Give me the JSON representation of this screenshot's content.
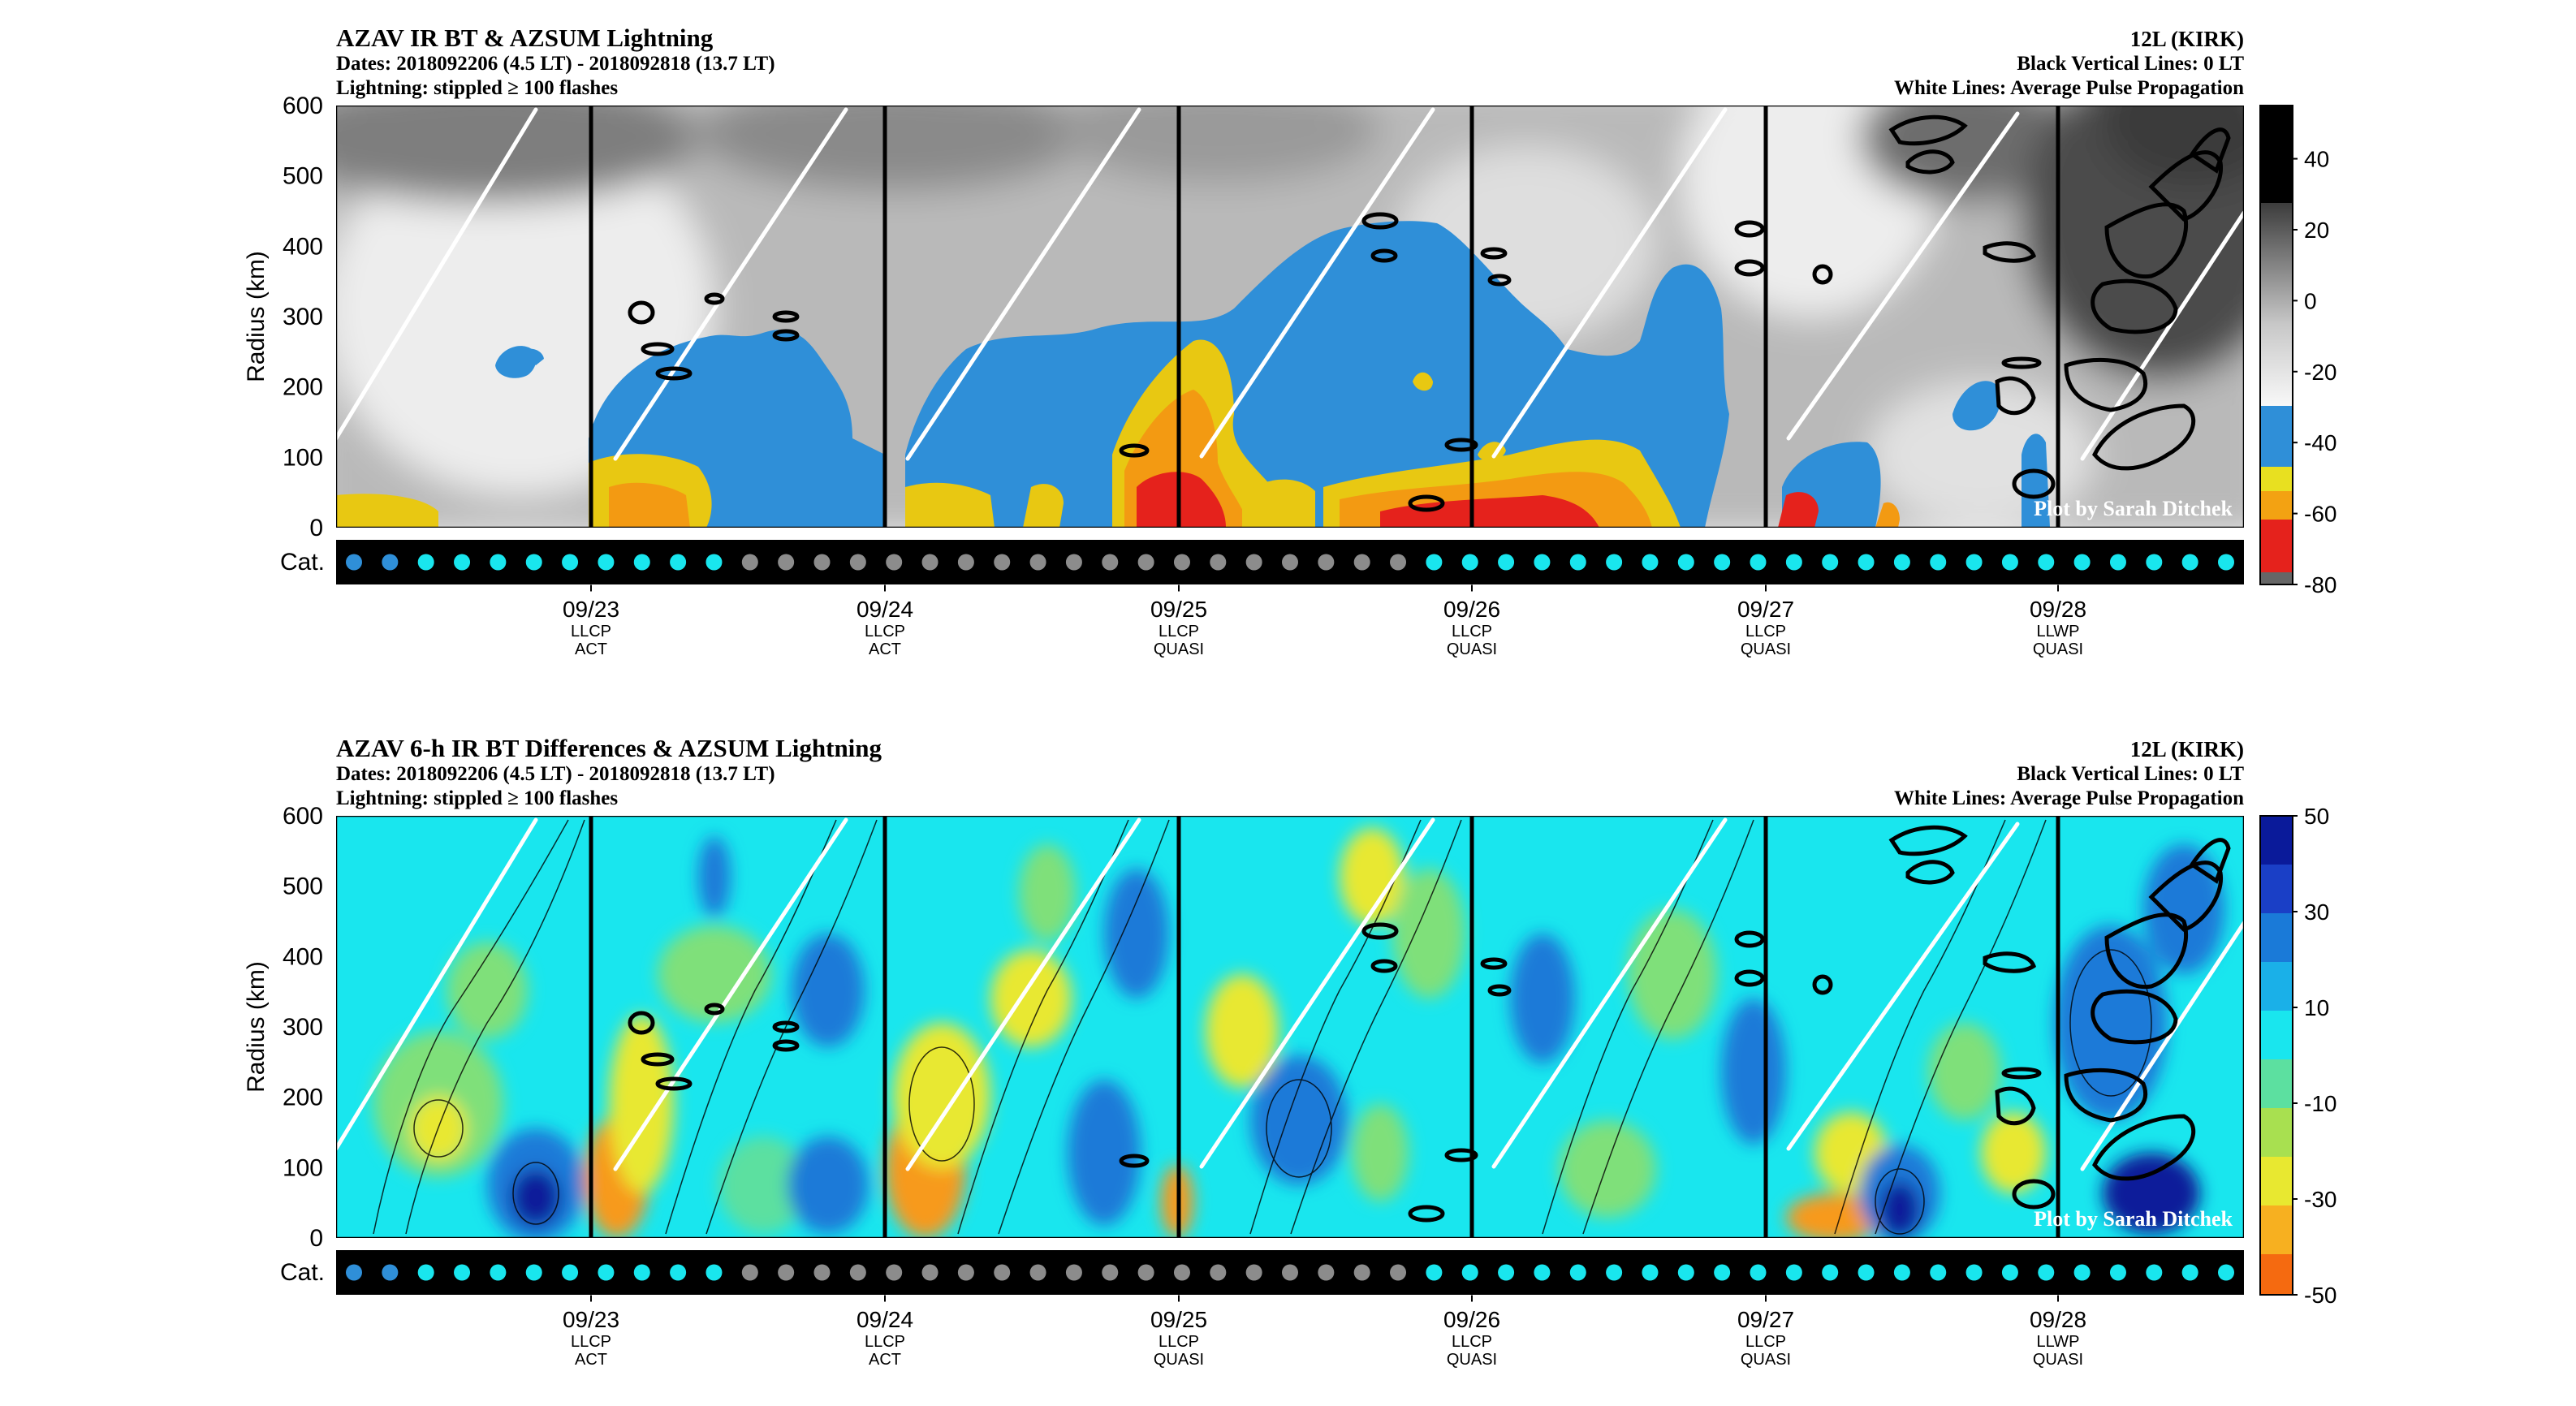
{
  "chart_data": [
    {
      "type": "heatmap",
      "title": "AZAV IR BT & AZSUM Lightning",
      "subtitle_dates": "Dates: 2018092206 (4.5 LT) - 2018092818 (13.7 LT)",
      "subtitle_lightning": "Lightning: stippled ≥ 100 flashes",
      "storm": "12L (KIRK)",
      "note_black_lines": "Black Vertical Lines: 0 LT",
      "note_white_lines": "White Lines: Average Pulse Propagation",
      "credit": "Plot by Sarah Ditchek",
      "ylabel": "Radius (km)",
      "ylim": [
        0,
        600
      ],
      "yticks": [
        "600",
        "500",
        "400",
        "300",
        "200",
        "100",
        "0"
      ],
      "category_label": "Cat.",
      "colorbar_ticks": [
        "40",
        "20",
        "0",
        "-20",
        "-40",
        "-60",
        "-80"
      ],
      "colorbar_range": [
        -80,
        55
      ],
      "colors": {
        "cold_blue": "#2f8fd8",
        "yellow": "#e9e21a",
        "orange": "#f39a12",
        "red": "#e5221c",
        "grey_light": "#e6e6e6",
        "grey_dark": "#4b4b4b"
      },
      "days": [
        {
          "date": "09/23",
          "phase": "LLCP",
          "state": "ACT"
        },
        {
          "date": "09/24",
          "phase": "LLCP",
          "state": "ACT"
        },
        {
          "date": "09/25",
          "phase": "LLCP",
          "state": "QUASI"
        },
        {
          "date": "09/26",
          "phase": "LLCP",
          "state": "QUASI"
        },
        {
          "date": "09/27",
          "phase": "LLCP",
          "state": "QUASI"
        },
        {
          "date": "09/28",
          "phase": "LLWP",
          "state": "QUASI"
        }
      ],
      "categories": [
        "blue",
        "blue",
        "cyan",
        "cyan",
        "cyan",
        "cyan",
        "cyan",
        "cyan",
        "cyan",
        "cyan",
        "cyan",
        "grey",
        "grey",
        "grey",
        "grey",
        "grey",
        "grey",
        "grey",
        "grey",
        "grey",
        "grey",
        "grey",
        "grey",
        "grey",
        "grey",
        "grey",
        "grey",
        "grey",
        "grey",
        "grey",
        "cyan",
        "cyan",
        "cyan",
        "cyan",
        "cyan",
        "cyan",
        "cyan",
        "cyan",
        "cyan",
        "cyan",
        "cyan",
        "cyan",
        "cyan",
        "cyan",
        "cyan",
        "cyan",
        "cyan",
        "cyan",
        "cyan",
        "cyan",
        "cyan",
        "cyan",
        "cyan"
      ]
    },
    {
      "type": "heatmap",
      "title": "AZAV 6-h IR BT Differences & AZSUM Lightning",
      "subtitle_dates": "Dates: 2018092206 (4.5 LT) - 2018092818 (13.7 LT)",
      "subtitle_lightning": "Lightning: stippled ≥ 100 flashes",
      "storm": "12L (KIRK)",
      "note_black_lines": "Black Vertical Lines: 0 LT",
      "note_white_lines": "White Lines: Average Pulse Propagation",
      "credit": "Plot by Sarah Ditchek",
      "ylabel": "Radius (km)",
      "ylim": [
        0,
        600
      ],
      "yticks": [
        "600",
        "500",
        "400",
        "300",
        "200",
        "100",
        "0"
      ],
      "category_label": "Cat.",
      "colorbar_ticks": [
        "50",
        "30",
        "10",
        "-10",
        "-30",
        "-50"
      ],
      "colorbar_range": [
        -50,
        50
      ],
      "colors": {
        "background": "#19e6ee",
        "green": "#5ce0a0",
        "yellow": "#e8e830",
        "orange": "#f79a1c",
        "blue": "#1a7ad8",
        "navy": "#0a1a9a"
      },
      "days": [
        {
          "date": "09/23",
          "phase": "LLCP",
          "state": "ACT"
        },
        {
          "date": "09/24",
          "phase": "LLCP",
          "state": "ACT"
        },
        {
          "date": "09/25",
          "phase": "LLCP",
          "state": "QUASI"
        },
        {
          "date": "09/26",
          "phase": "LLCP",
          "state": "QUASI"
        },
        {
          "date": "09/27",
          "phase": "LLCP",
          "state": "QUASI"
        },
        {
          "date": "09/28",
          "phase": "LLWP",
          "state": "QUASI"
        }
      ],
      "categories": [
        "blue",
        "blue",
        "cyan",
        "cyan",
        "cyan",
        "cyan",
        "cyan",
        "cyan",
        "cyan",
        "cyan",
        "cyan",
        "grey",
        "grey",
        "grey",
        "grey",
        "grey",
        "grey",
        "grey",
        "grey",
        "grey",
        "grey",
        "grey",
        "grey",
        "grey",
        "grey",
        "grey",
        "grey",
        "grey",
        "grey",
        "grey",
        "cyan",
        "cyan",
        "cyan",
        "cyan",
        "cyan",
        "cyan",
        "cyan",
        "cyan",
        "cyan",
        "cyan",
        "cyan",
        "cyan",
        "cyan",
        "cyan",
        "cyan",
        "cyan",
        "cyan",
        "cyan",
        "cyan",
        "cyan",
        "cyan",
        "cyan",
        "cyan"
      ]
    }
  ]
}
